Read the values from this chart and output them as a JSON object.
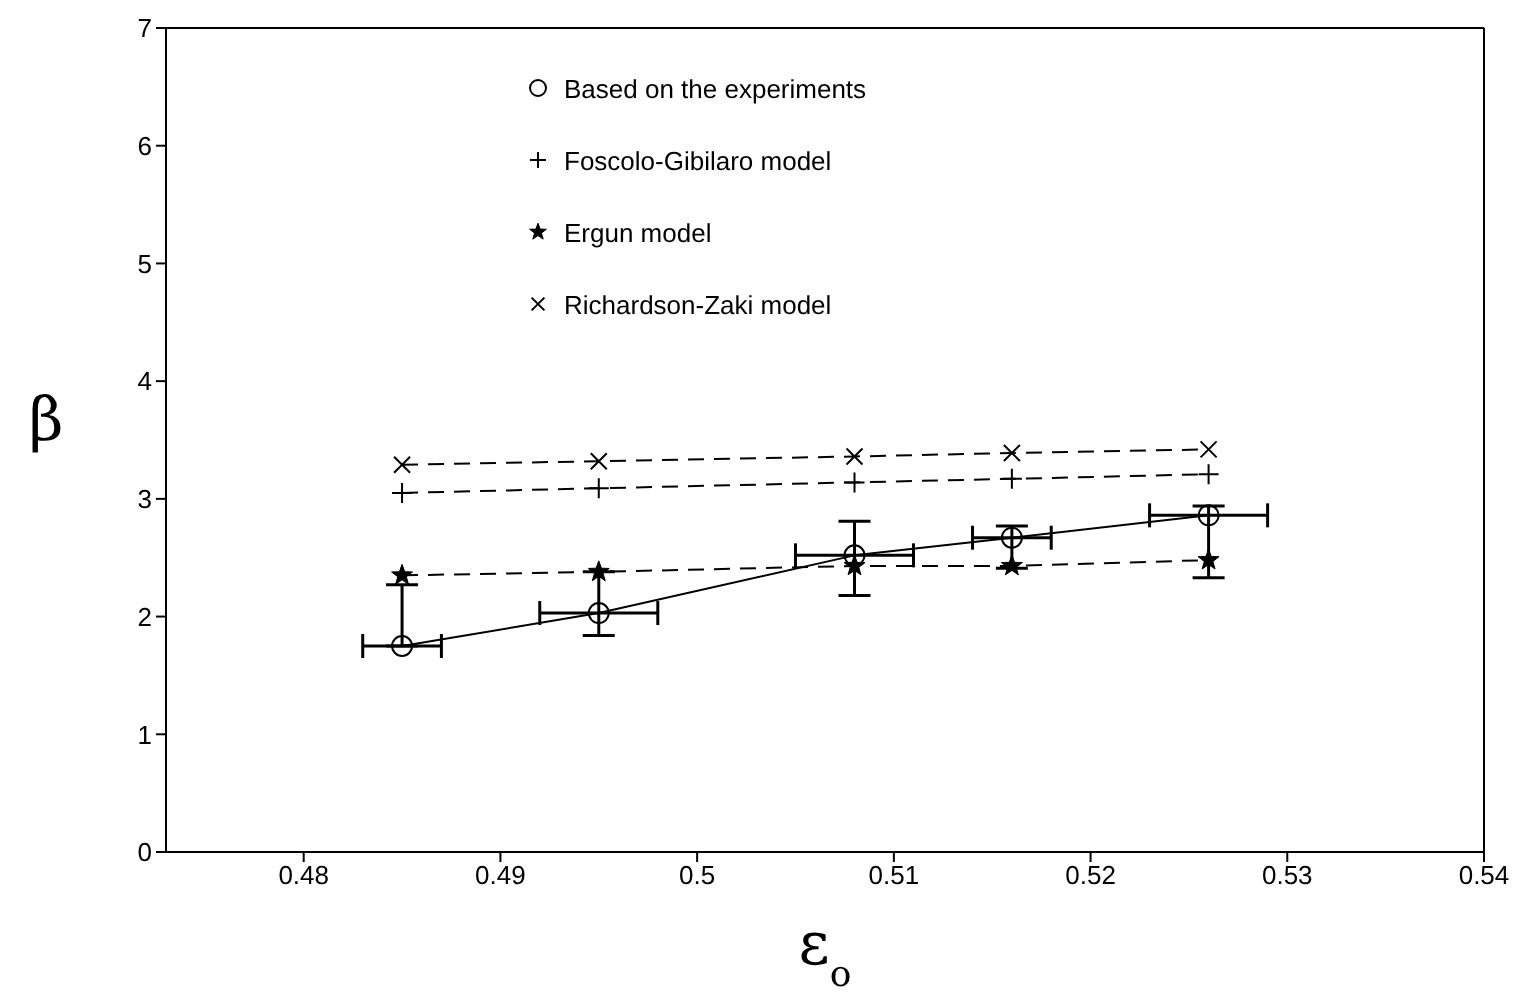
{
  "chart_data": {
    "type": "line",
    "xlabel": "ε$_{o}$",
    "ylabel": "β",
    "xlim": [
      0.473,
      0.54
    ],
    "xticks": [
      0.48,
      0.49,
      0.5,
      0.51,
      0.52,
      0.53,
      0.54
    ],
    "ylim": [
      0,
      7
    ],
    "yticks": [
      0,
      1,
      2,
      3,
      4,
      5,
      6,
      7
    ],
    "grid": false,
    "legend": "top",
    "series": [
      {
        "name": "Based on the experiments",
        "color": "#000000",
        "marker": "circle",
        "line_style": "solid",
        "x": [
          0.485,
          0.495,
          0.508,
          0.516,
          0.526
        ],
        "values": [
          1.75,
          2.03,
          2.52,
          2.67,
          2.86
        ],
        "errors": [
          [
            1.75,
            2.27
          ],
          [
            1.84,
            2.38
          ],
          [
            2.18,
            2.81
          ],
          [
            2.41,
            2.77
          ],
          [
            2.33,
            2.94
          ]
        ],
        "xerrors": [
          0.002,
          0.003,
          0.003,
          0.002,
          0.003
        ]
      },
      {
        "name": "Foscolo-Gibilaro model",
        "color": "#000000",
        "marker": "plus",
        "line_style": "dashed",
        "x": [
          0.485,
          0.495,
          0.508,
          0.516,
          0.526
        ],
        "values": [
          3.05,
          3.09,
          3.14,
          3.17,
          3.21
        ]
      },
      {
        "name": "Ergun model",
        "color": "#000000",
        "marker": "star",
        "line_style": "dashed",
        "x": [
          0.485,
          0.495,
          0.508,
          0.516,
          0.526
        ],
        "values": [
          2.35,
          2.38,
          2.43,
          2.43,
          2.48
        ]
      },
      {
        "name": "Richardson-Zaki model",
        "color": "#000000",
        "marker": "cross",
        "line_style": "dashed",
        "x": [
          0.485,
          0.495,
          0.508,
          0.516,
          0.526
        ],
        "values": [
          3.29,
          3.32,
          3.36,
          3.39,
          3.42
        ]
      }
    ]
  }
}
